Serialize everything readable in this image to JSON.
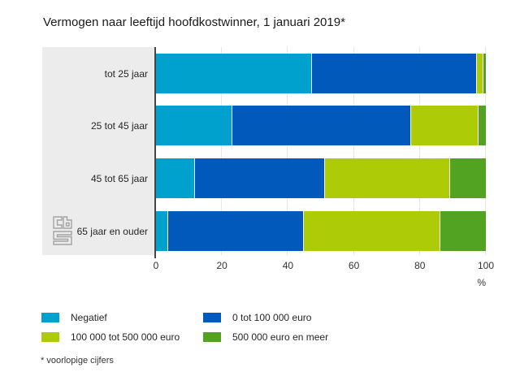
{
  "chart_data": {
    "type": "bar",
    "orientation": "horizontal",
    "stacked": true,
    "title": "Vermogen naar leeftijd hoofdkostwinner, 1 januari 2019*",
    "categories": [
      "tot 25 jaar",
      "25 tot 45 jaar",
      "45 tot 65 jaar",
      "65 jaar en ouder"
    ],
    "series": [
      {
        "name": "Negatief",
        "color": "#00a1cd",
        "values": [
          47,
          23,
          11.5,
          3.5
        ]
      },
      {
        "name": "0 tot 100 000 euro",
        "color": "#0059bb",
        "values": [
          50,
          54,
          39.5,
          41
        ]
      },
      {
        "name": "100 000 tot 500 000 euro",
        "color": "#aecb07",
        "values": [
          2,
          20.5,
          38,
          41.5
        ]
      },
      {
        "name": "500 000 euro en meer",
        "color": "#52a321",
        "values": [
          1,
          2.5,
          11,
          14
        ]
      }
    ],
    "x_ticks": [
      0,
      20,
      40,
      60,
      80,
      100
    ],
    "xlim": [
      0,
      100
    ],
    "x_unit": "%",
    "grid": true,
    "legend_position": "bottom",
    "panel_background": "#ececec",
    "axis_line_color": "#454545",
    "footnote": "* voorlopige cijfers",
    "logo_icon": "cbs-logo"
  }
}
